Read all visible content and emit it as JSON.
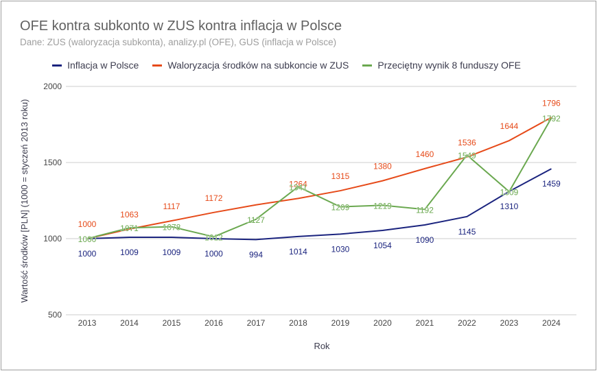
{
  "chart_data": {
    "type": "line",
    "title": "OFE kontra subkonto w ZUS kontra inflacja w Polsce",
    "subtitle": "Dane: ZUS (waloryzacja subkonta), analizy.pl (OFE), GUS (inflacja w Polsce)",
    "xlabel": "Rok",
    "ylabel": "Wartość środków [PLN] (1000 = styczeń 2013 roku)",
    "x": [
      "2013",
      "2014",
      "2015",
      "2016",
      "2017",
      "2018",
      "2019",
      "2020",
      "2021",
      "2022",
      "2023",
      "2024"
    ],
    "ylim": [
      500,
      2000
    ],
    "yticks": [
      500,
      1000,
      1500,
      2000
    ],
    "grid": true,
    "legend_position": "top",
    "series": [
      {
        "name": "Inflacja w Polsce",
        "color": "#1a237e",
        "label_pos": "below",
        "values": [
          1000,
          1009,
          1009,
          1000,
          994,
          1014,
          1030,
          1054,
          1090,
          1145,
          1310,
          1459
        ],
        "labels": [
          "1000",
          "1009",
          "1009",
          "1000",
          "994",
          "1014",
          "1030",
          "1054",
          "1090",
          "1145",
          "1310",
          "1459"
        ]
      },
      {
        "name": "Waloryzacja środków na subkoncie w ZUS",
        "color": "#e64a19",
        "label_pos": "above",
        "values": [
          1000,
          1063,
          1117,
          1172,
          1222,
          1264,
          1315,
          1380,
          1460,
          1536,
          1644,
          1796
        ],
        "labels": [
          "1000",
          "1063",
          "1117",
          "1172",
          "",
          "1264",
          "1315",
          "1380",
          "1460",
          "1536",
          "1644",
          "1796"
        ]
      },
      {
        "name": "Przeciętny wynik 8 funduszy OFE",
        "color": "#6aa84f",
        "label_pos": "center",
        "values": [
          1000,
          1071,
          1078,
          1012,
          1127,
          1341,
          1209,
          1219,
          1192,
          1549,
          1309,
          1792
        ],
        "labels": [
          "1000",
          "1071",
          "1078",
          "1012",
          "1127",
          "1341",
          "1209",
          "1219",
          "1192",
          "1549",
          "1309",
          "1792"
        ]
      }
    ]
  }
}
